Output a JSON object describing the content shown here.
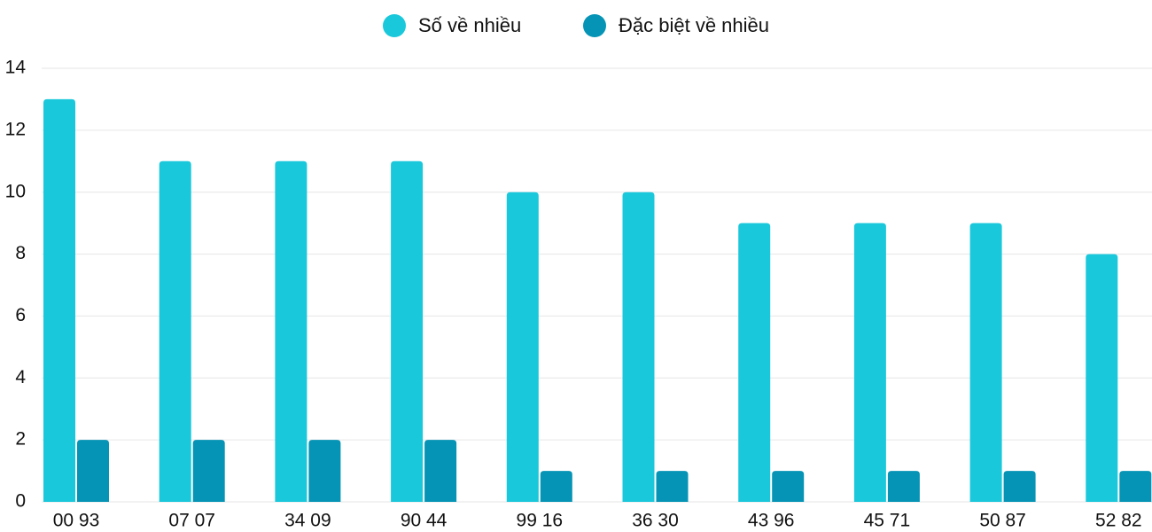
{
  "chart_data": {
    "type": "bar",
    "categories": [
      "00 93",
      "07 07",
      "34 09",
      "90 44",
      "99 16",
      "36 30",
      "43 96",
      "45 71",
      "50 87",
      "52 82"
    ],
    "series": [
      {
        "name": "Số về nhiều",
        "color": "#1ac8db",
        "values": [
          13,
          11,
          11,
          11,
          10,
          10,
          9,
          9,
          9,
          8
        ]
      },
      {
        "name": "Đặc biệt về nhiều",
        "color": "#0594b5",
        "values": [
          2,
          2,
          2,
          2,
          1,
          1,
          1,
          1,
          1,
          1
        ]
      }
    ],
    "ylim": [
      0,
      14
    ],
    "yticks": [
      0,
      2,
      4,
      6,
      8,
      10,
      12,
      14
    ],
    "grid": true,
    "legend": "top"
  }
}
